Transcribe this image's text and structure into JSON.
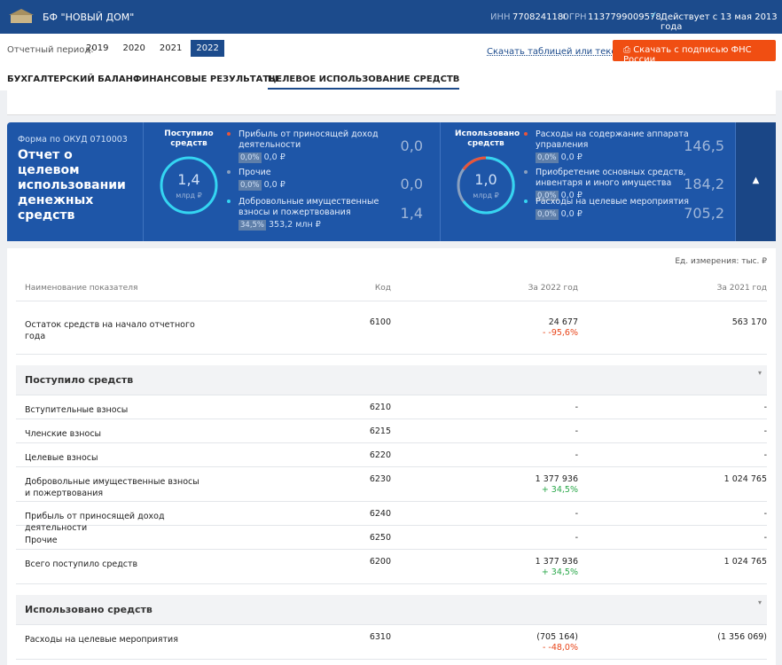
{
  "header": {
    "org": "БФ \"НОВЫЙ ДОМ\"",
    "inn_label": "ИНН",
    "inn": "7708241180",
    "ogrn_label": "ОГРН",
    "ogrn": "1137799009578",
    "status": "Действует с 13 мая 2013 года"
  },
  "period": {
    "label": "Отчетный период:",
    "years": [
      "2019",
      "2020",
      "2021",
      "2022"
    ],
    "download_link": "Скачать таблицей или текстом",
    "download_button": "Скачать с подписью ФНС России"
  },
  "tabs": [
    "БУХГАЛТЕРСКИЙ БАЛАНС",
    "ФИНАНСОВЫЕ РЕЗУЛЬТАТЫ",
    "ЦЕЛЕВОЕ ИСПОЛЬЗОВАНИЕ СРЕДСТВ"
  ],
  "summary": {
    "form": "Форма по ОКУД 0710003",
    "title": "Отчет о целевом использовании денежных средств",
    "income": {
      "label": "Поступило средств",
      "total": "1,4",
      "unit": "млрд ₽",
      "items": [
        {
          "name": "Прибыль от приносящей доход деятельности",
          "share": "0,0%",
          "amount": "0,0 ₽",
          "value": "0,0"
        },
        {
          "name": "Прочие",
          "share": "0,0%",
          "amount": "0,0 ₽",
          "value": "0,0"
        },
        {
          "name": "Добровольные имущественные взносы и пожертвования",
          "share": "34,5%",
          "amount": "353,2 млн ₽",
          "value": "1,4"
        }
      ]
    },
    "used": {
      "label": "Использовано средств",
      "total": "1,0",
      "unit": "млрд ₽",
      "items": [
        {
          "name": "Расходы на содержание аппарата управления",
          "share": "0,0%",
          "amount": "0,0 ₽",
          "value": "146,5"
        },
        {
          "name": "Приобретение основных средств, инвентаря и иного имущества",
          "share": "0,0%",
          "amount": "0,0 ₽",
          "value": "184,2"
        },
        {
          "name": "Расходы на целевые мероприятия",
          "share": "0,0%",
          "amount": "0,0 ₽",
          "value": "705,2"
        }
      ]
    }
  },
  "table": {
    "unit": "Ед. измерения: тыс. ₽",
    "columns": [
      "Наименование показателя",
      "Код",
      "За 2022 год",
      "За 2021 год"
    ],
    "rows": [
      {
        "name": "Остаток средств на начало отчетного года",
        "code": "6100",
        "y2022": "24 677",
        "change": "- -95,6%",
        "y2021": "563 170"
      },
      {
        "section": "Поступило средств"
      },
      {
        "name": "Вступительные взносы",
        "code": "6210",
        "y2022": "-",
        "y2021": "-"
      },
      {
        "name": "Членские взносы",
        "code": "6215",
        "y2022": "-",
        "y2021": "-"
      },
      {
        "name": "Целевые взносы",
        "code": "6220",
        "y2022": "-",
        "y2021": "-"
      },
      {
        "name": "Добровольные имущественные взносы и пожертвования",
        "code": "6230",
        "y2022": "1 377 936",
        "change": "+ 34,5%",
        "y2021": "1 024 765"
      },
      {
        "name": "Прибыль от приносящей доход деятельности",
        "code": "6240",
        "y2022": "-",
        "y2021": "-"
      },
      {
        "name": "Прочие",
        "code": "6250",
        "y2022": "-",
        "y2021": "-"
      },
      {
        "name": "Всего поступило средств",
        "code": "6200",
        "y2022": "1 377 936",
        "change": "+ 34,5%",
        "y2021": "1 024 765"
      },
      {
        "section": "Использовано средств"
      },
      {
        "name": "Расходы на целевые мероприятия",
        "code": "6310",
        "y2022": "(705 164)",
        "change": "- -48,0%",
        "y2021": "(1 356 069)"
      }
    ]
  }
}
